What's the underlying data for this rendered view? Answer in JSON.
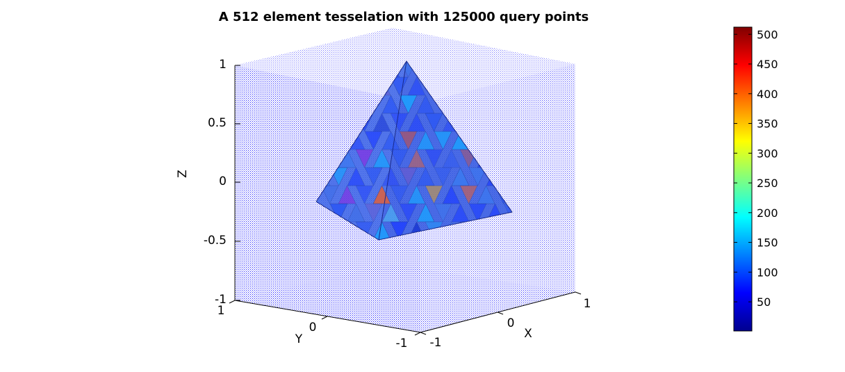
{
  "chart_data": {
    "type": "scatter",
    "title": "A 512 element tesselation with 125000 query points",
    "xlabel": "X",
    "ylabel": "Y",
    "zlabel": "Z",
    "xlim": [
      -1,
      1
    ],
    "ylim": [
      -1,
      1
    ],
    "zlim": [
      -1,
      1
    ],
    "x_ticks": [
      "-1",
      "0",
      "1"
    ],
    "y_ticks": [
      "1",
      "0",
      "-1"
    ],
    "z_ticks": [
      "1",
      "0.5",
      "0",
      "-0.5",
      "-1"
    ],
    "grid": false,
    "point_color": "#0000ff",
    "colormap": "jet",
    "colorbar": {
      "position": "right",
      "range": [
        1,
        512
      ],
      "ticks": [
        "500",
        "450",
        "400",
        "350",
        "300",
        "250",
        "200",
        "150",
        "100",
        "50"
      ],
      "tick_values": [
        500,
        450,
        400,
        350,
        300,
        250,
        200,
        150,
        100,
        50
      ]
    }
  }
}
